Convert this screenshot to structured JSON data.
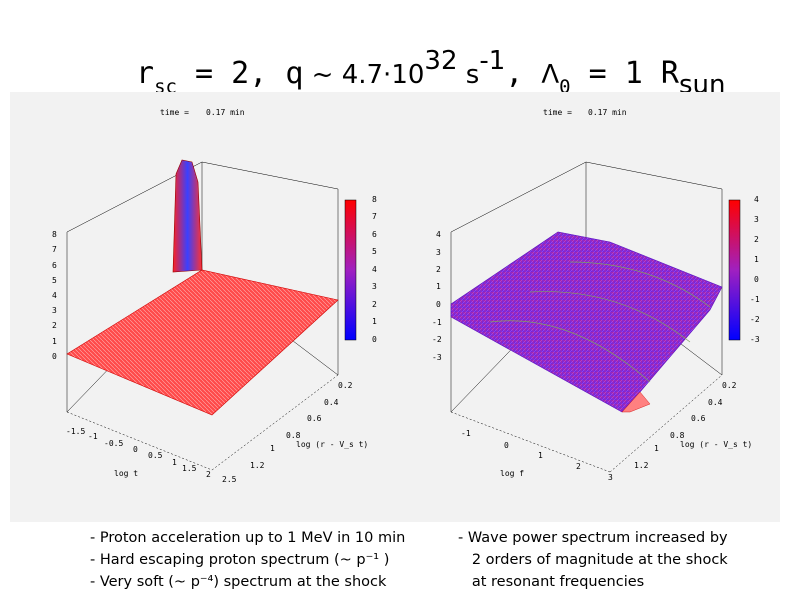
{
  "title": {
    "r": "r",
    "r_sub": "sc",
    "eq1": " = 2, q",
    "tilde": " ~ 4.7·10",
    "exp": "32",
    "unit": " s",
    "unit_exp": "-1",
    "sep": ", ",
    "lambda": "Λ",
    "lambda_sub": "0",
    "eq2": " = 1 R",
    "rsun_sub": "sun"
  },
  "plots": [
    {
      "time_label": "time =",
      "time_value": "0.17 min",
      "z_ticks": [
        "8",
        "7",
        "6",
        "5",
        "4",
        "3",
        "2",
        "1",
        "0"
      ],
      "colorbar_ticks": [
        "8",
        "7",
        "6",
        "5",
        "4",
        "3",
        "2",
        "1",
        "0"
      ],
      "x_label": "log t",
      "x_ticks": [
        "-1.5",
        "-1",
        "-0.5",
        "0",
        "0.5",
        "1",
        "1.5",
        "2",
        "2.5"
      ],
      "y_label": "log (r - V_s t)",
      "y_ticks": [
        "0.2",
        "0.4",
        "0.6",
        "0.8",
        "1",
        "1.2"
      ]
    },
    {
      "time_label": "time =",
      "time_value": "0.17 min",
      "z_ticks": [
        "4",
        "3",
        "2",
        "1",
        "0",
        "-1",
        "-2",
        "-3"
      ],
      "colorbar_ticks": [
        "4",
        "3",
        "2",
        "1",
        "0",
        "-1",
        "-2",
        "-3"
      ],
      "x_label": "log f",
      "x_ticks": [
        "-1",
        "0",
        "1",
        "2",
        "3"
      ],
      "y_label": "log (r - V_s t)",
      "y_ticks": [
        "0.2",
        "0.4",
        "0.6",
        "0.8",
        "1",
        "1.2"
      ]
    }
  ],
  "captions": {
    "left": [
      "- Proton acceleration up to 1 MeV in 10 min",
      "- Hard escaping proton spectrum (~ p⁻¹ )",
      "- Very soft (~ p⁻⁴) spectrum at the shock"
    ],
    "right": [
      "- Wave power spectrum increased by",
      "   2 orders of magnitude at the shock",
      "   at resonant frequencies"
    ]
  },
  "colors": {
    "colorbar_top": "#ff0000",
    "colorbar_bottom": "#0000ff",
    "surface_red": "#ff4a4a",
    "surface_purple": "#8a2bd0"
  }
}
